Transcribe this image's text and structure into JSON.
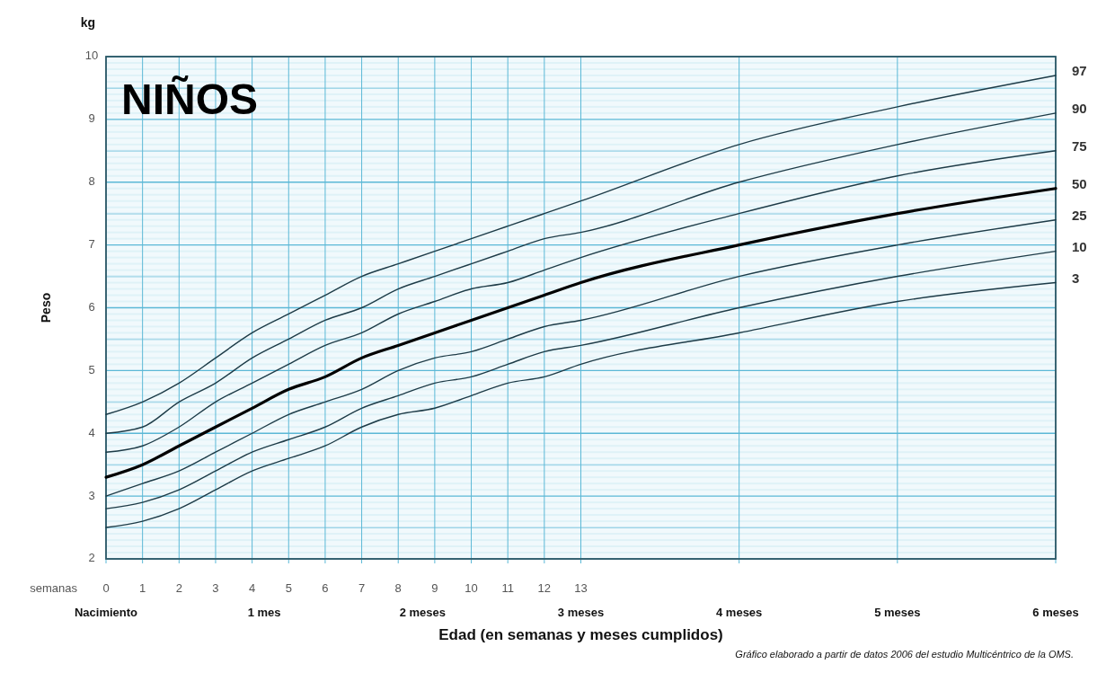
{
  "chart_data": {
    "type": "line",
    "title": "NIÑOS",
    "xlabel": "Edad (en semanas y meses cumplidos)",
    "ylabel": "Peso",
    "annotations": [
      "semanas",
      "kg",
      "Gráfico elaborado a partir de datos 2006 del estudio Multicéntrico de la OMS."
    ],
    "x": [
      0,
      1,
      2,
      3,
      4,
      5,
      6,
      7,
      8,
      9,
      10,
      11,
      12,
      13,
      17.33,
      21.67,
      26
    ],
    "series": [
      {
        "name": "97",
        "color": "#1d3b47",
        "values": [
          4.3,
          4.5,
          4.8,
          5.2,
          5.6,
          5.9,
          6.2,
          6.5,
          6.7,
          6.9,
          7.1,
          7.3,
          7.5,
          7.7,
          8.6,
          9.2,
          9.7
        ]
      },
      {
        "name": "90",
        "color": "#1d3b47",
        "values": [
          4.0,
          4.1,
          4.5,
          4.8,
          5.2,
          5.5,
          5.8,
          6.0,
          6.3,
          6.5,
          6.7,
          6.9,
          7.1,
          7.2,
          8.0,
          8.6,
          9.1
        ]
      },
      {
        "name": "75",
        "color": "#1d3b47",
        "values": [
          3.7,
          3.8,
          4.1,
          4.5,
          4.8,
          5.1,
          5.4,
          5.6,
          5.9,
          6.1,
          6.3,
          6.4,
          6.6,
          6.8,
          7.5,
          8.1,
          8.5
        ]
      },
      {
        "name": "50",
        "color": "#000000",
        "values": [
          3.3,
          3.5,
          3.8,
          4.1,
          4.4,
          4.7,
          4.9,
          5.2,
          5.4,
          5.6,
          5.8,
          6.0,
          6.2,
          6.4,
          7.0,
          7.5,
          7.9
        ]
      },
      {
        "name": "25",
        "color": "#1d3b47",
        "values": [
          3.0,
          3.2,
          3.4,
          3.7,
          4.0,
          4.3,
          4.5,
          4.7,
          5.0,
          5.2,
          5.3,
          5.5,
          5.7,
          5.8,
          6.5,
          7.0,
          7.4
        ]
      },
      {
        "name": "10",
        "color": "#1d3b47",
        "values": [
          2.8,
          2.9,
          3.1,
          3.4,
          3.7,
          3.9,
          4.1,
          4.4,
          4.6,
          4.8,
          4.9,
          5.1,
          5.3,
          5.4,
          6.0,
          6.5,
          6.9
        ]
      },
      {
        "name": "3",
        "color": "#1d3b47",
        "values": [
          2.5,
          2.6,
          2.8,
          3.1,
          3.4,
          3.6,
          3.8,
          4.1,
          4.3,
          4.4,
          4.6,
          4.8,
          4.9,
          5.1,
          5.6,
          6.1,
          6.4
        ]
      }
    ],
    "xlim": [
      0,
      26
    ],
    "xticks": [
      0,
      1,
      2,
      3,
      4,
      5,
      6,
      7,
      8,
      9,
      10,
      11,
      12,
      13
    ],
    "x2lim": [
      0,
      6
    ],
    "x2ticks": [
      {
        "value": 0,
        "label": "Nacimiento"
      },
      {
        "value": 1,
        "label": "1 mes"
      },
      {
        "value": 2,
        "label": "2 meses"
      },
      {
        "value": 3,
        "label": "3 meses"
      },
      {
        "value": 4,
        "label": "4 meses"
      },
      {
        "value": 5,
        "label": "5 meses"
      },
      {
        "value": 6,
        "label": "6 meses"
      }
    ],
    "ylim": [
      2,
      10
    ],
    "yticks": [
      2,
      3,
      4,
      5,
      6,
      7,
      8,
      9,
      10
    ],
    "grid": true,
    "line_style": "solid",
    "marker": "none"
  }
}
